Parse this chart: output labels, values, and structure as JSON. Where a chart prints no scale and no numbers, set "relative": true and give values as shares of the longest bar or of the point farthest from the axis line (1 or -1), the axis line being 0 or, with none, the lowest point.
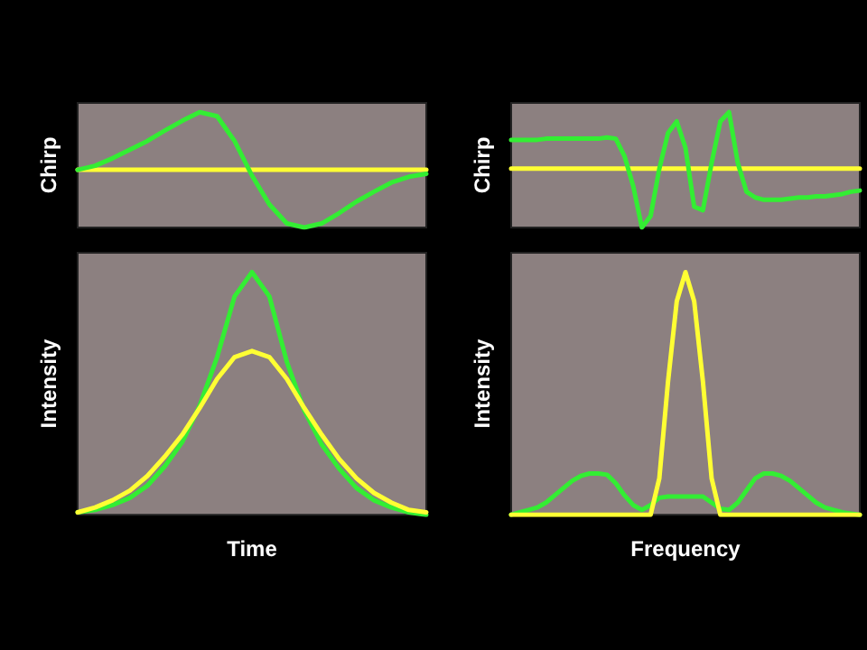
{
  "chart_data": [
    {
      "type": "line",
      "ylabel": "Chirp",
      "relative": true,
      "marker": "none",
      "categories": [
        null,
        null,
        null,
        null,
        null,
        null,
        null,
        null,
        null,
        null,
        null,
        null,
        null,
        null,
        null,
        null,
        null,
        null,
        null,
        null,
        null
      ],
      "series": [
        {
          "color": "#ffff33",
          "values": [
            0.5,
            0.5,
            0.5,
            0.5,
            0.5,
            0.5,
            0.5,
            0.5,
            0.5,
            0.5,
            0.5,
            0.5,
            0.5,
            0.5,
            0.5,
            0.5,
            0.5,
            0.5,
            0.5,
            0.5,
            0.5
          ]
        },
        {
          "color": "#33ee33",
          "values": [
            0.5,
            0.535,
            0.6,
            0.675,
            0.75,
            0.84,
            0.925,
            1,
            0.965,
            0.75,
            0.45,
            0.2,
            0.035,
            0,
            0.035,
            0.125,
            0.225,
            0.31,
            0.39,
            0.44,
            0.465
          ]
        }
      ]
    },
    {
      "type": "line",
      "ylabel": "Chirp",
      "relative": true,
      "marker": "none",
      "categories": [
        null,
        null,
        null,
        null,
        null,
        null,
        null,
        null,
        null,
        null,
        null,
        null,
        null,
        null,
        null,
        null,
        null,
        null,
        null,
        null,
        null,
        null,
        null,
        null,
        null,
        null,
        null,
        null,
        null,
        null,
        null,
        null,
        null,
        null,
        null,
        null,
        null,
        null,
        null,
        null,
        null
      ],
      "series": [
        {
          "color": "#ffff33",
          "values": [
            0.51,
            0.51,
            0.51,
            0.51,
            0.51,
            0.51,
            0.51,
            0.51,
            0.51,
            0.51,
            0.51,
            0.51,
            0.51,
            0.51,
            0.51,
            0.51,
            0.51,
            0.51,
            0.51,
            0.51,
            0.51,
            0.51,
            0.51,
            0.51,
            0.51,
            0.51,
            0.51,
            0.51,
            0.51,
            0.51,
            0.51,
            0.51,
            0.51,
            0.51,
            0.51,
            0.51,
            0.51,
            0.51,
            0.51,
            0.51,
            0.51
          ]
        },
        {
          "color": "#33ee33",
          "values": [
            0.76,
            0.76,
            0.76,
            0.76,
            0.77,
            0.77,
            0.77,
            0.77,
            0.77,
            0.77,
            0.77,
            0.78,
            0.77,
            0.62,
            0.36,
            0,
            0.1,
            0.51,
            0.82,
            0.92,
            0.69,
            0.18,
            0.15,
            0.56,
            0.92,
            1,
            0.56,
            0.31,
            0.26,
            0.24,
            0.24,
            0.24,
            0.25,
            0.26,
            0.26,
            0.27,
            0.27,
            0.28,
            0.29,
            0.31,
            0.32
          ]
        }
      ]
    },
    {
      "type": "line",
      "xlabel": "Time",
      "ylabel": "Intensity",
      "relative": true,
      "marker": "none",
      "categories": [
        null,
        null,
        null,
        null,
        null,
        null,
        null,
        null,
        null,
        null,
        null,
        null,
        null,
        null,
        null,
        null,
        null,
        null,
        null,
        null,
        null
      ],
      "series": [
        {
          "color": "#33ee33",
          "values": [
            0.01,
            0.02,
            0.04,
            0.07,
            0.12,
            0.2,
            0.3,
            0.45,
            0.65,
            0.9,
            1,
            0.9,
            0.63,
            0.43,
            0.29,
            0.19,
            0.11,
            0.06,
            0.03,
            0.01,
            0
          ]
        },
        {
          "color": "#ffff33",
          "values": [
            0.01,
            0.03,
            0.06,
            0.1,
            0.16,
            0.24,
            0.33,
            0.44,
            0.56,
            0.65,
            0.675,
            0.65,
            0.56,
            0.44,
            0.33,
            0.23,
            0.15,
            0.09,
            0.05,
            0.02,
            0.01
          ]
        }
      ]
    },
    {
      "type": "line",
      "xlabel": "Frequency",
      "ylabel": "Intensity",
      "relative": true,
      "marker": "none",
      "categories": [
        null,
        null,
        null,
        null,
        null,
        null,
        null,
        null,
        null,
        null,
        null,
        null,
        null,
        null,
        null,
        null,
        null,
        null,
        null,
        null,
        null,
        null,
        null,
        null,
        null,
        null,
        null,
        null,
        null,
        null,
        null,
        null,
        null,
        null,
        null,
        null,
        null,
        null,
        null,
        null,
        null
      ],
      "series": [
        {
          "color": "#33ee33",
          "values": [
            0,
            0.01,
            0.02,
            0.03,
            0.05,
            0.08,
            0.11,
            0.14,
            0.16,
            0.17,
            0.17,
            0.165,
            0.13,
            0.08,
            0.04,
            0.02,
            0.04,
            0.07,
            0.075,
            0.075,
            0.075,
            0.075,
            0.075,
            0.05,
            0.025,
            0.02,
            0.05,
            0.1,
            0.15,
            0.17,
            0.17,
            0.16,
            0.14,
            0.11,
            0.08,
            0.05,
            0.03,
            0.02,
            0.01,
            0.005,
            0
          ]
        },
        {
          "color": "#ffff33",
          "values": [
            0,
            0,
            0,
            0,
            0,
            0,
            0,
            0,
            0,
            0,
            0,
            0,
            0,
            0,
            0,
            0,
            0,
            0.15,
            0.55,
            0.88,
            1,
            0.88,
            0.55,
            0.15,
            0,
            0,
            0,
            0,
            0,
            0,
            0,
            0,
            0,
            0,
            0,
            0,
            0,
            0,
            0,
            0,
            0
          ]
        }
      ]
    }
  ]
}
